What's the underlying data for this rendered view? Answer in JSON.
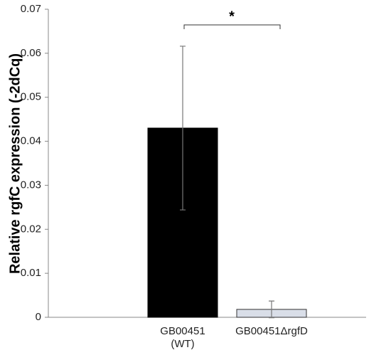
{
  "chart_data": {
    "type": "bar",
    "ylabel": "Relative rgfC expression (-2dCq)",
    "categories": [
      [
        "GB00451",
        "(WT)"
      ],
      [
        "GB00451ΔrgfD"
      ]
    ],
    "values": [
      0.043,
      0.0018
    ],
    "errors": [
      0.0186,
      0.0019
    ],
    "colors": [
      "#000000",
      "#d9dee8"
    ],
    "ylim": [
      0,
      0.07
    ],
    "yticks": [
      0,
      0.01,
      0.02,
      0.03,
      0.04,
      0.05,
      0.06,
      0.07
    ],
    "annotation": "*"
  }
}
